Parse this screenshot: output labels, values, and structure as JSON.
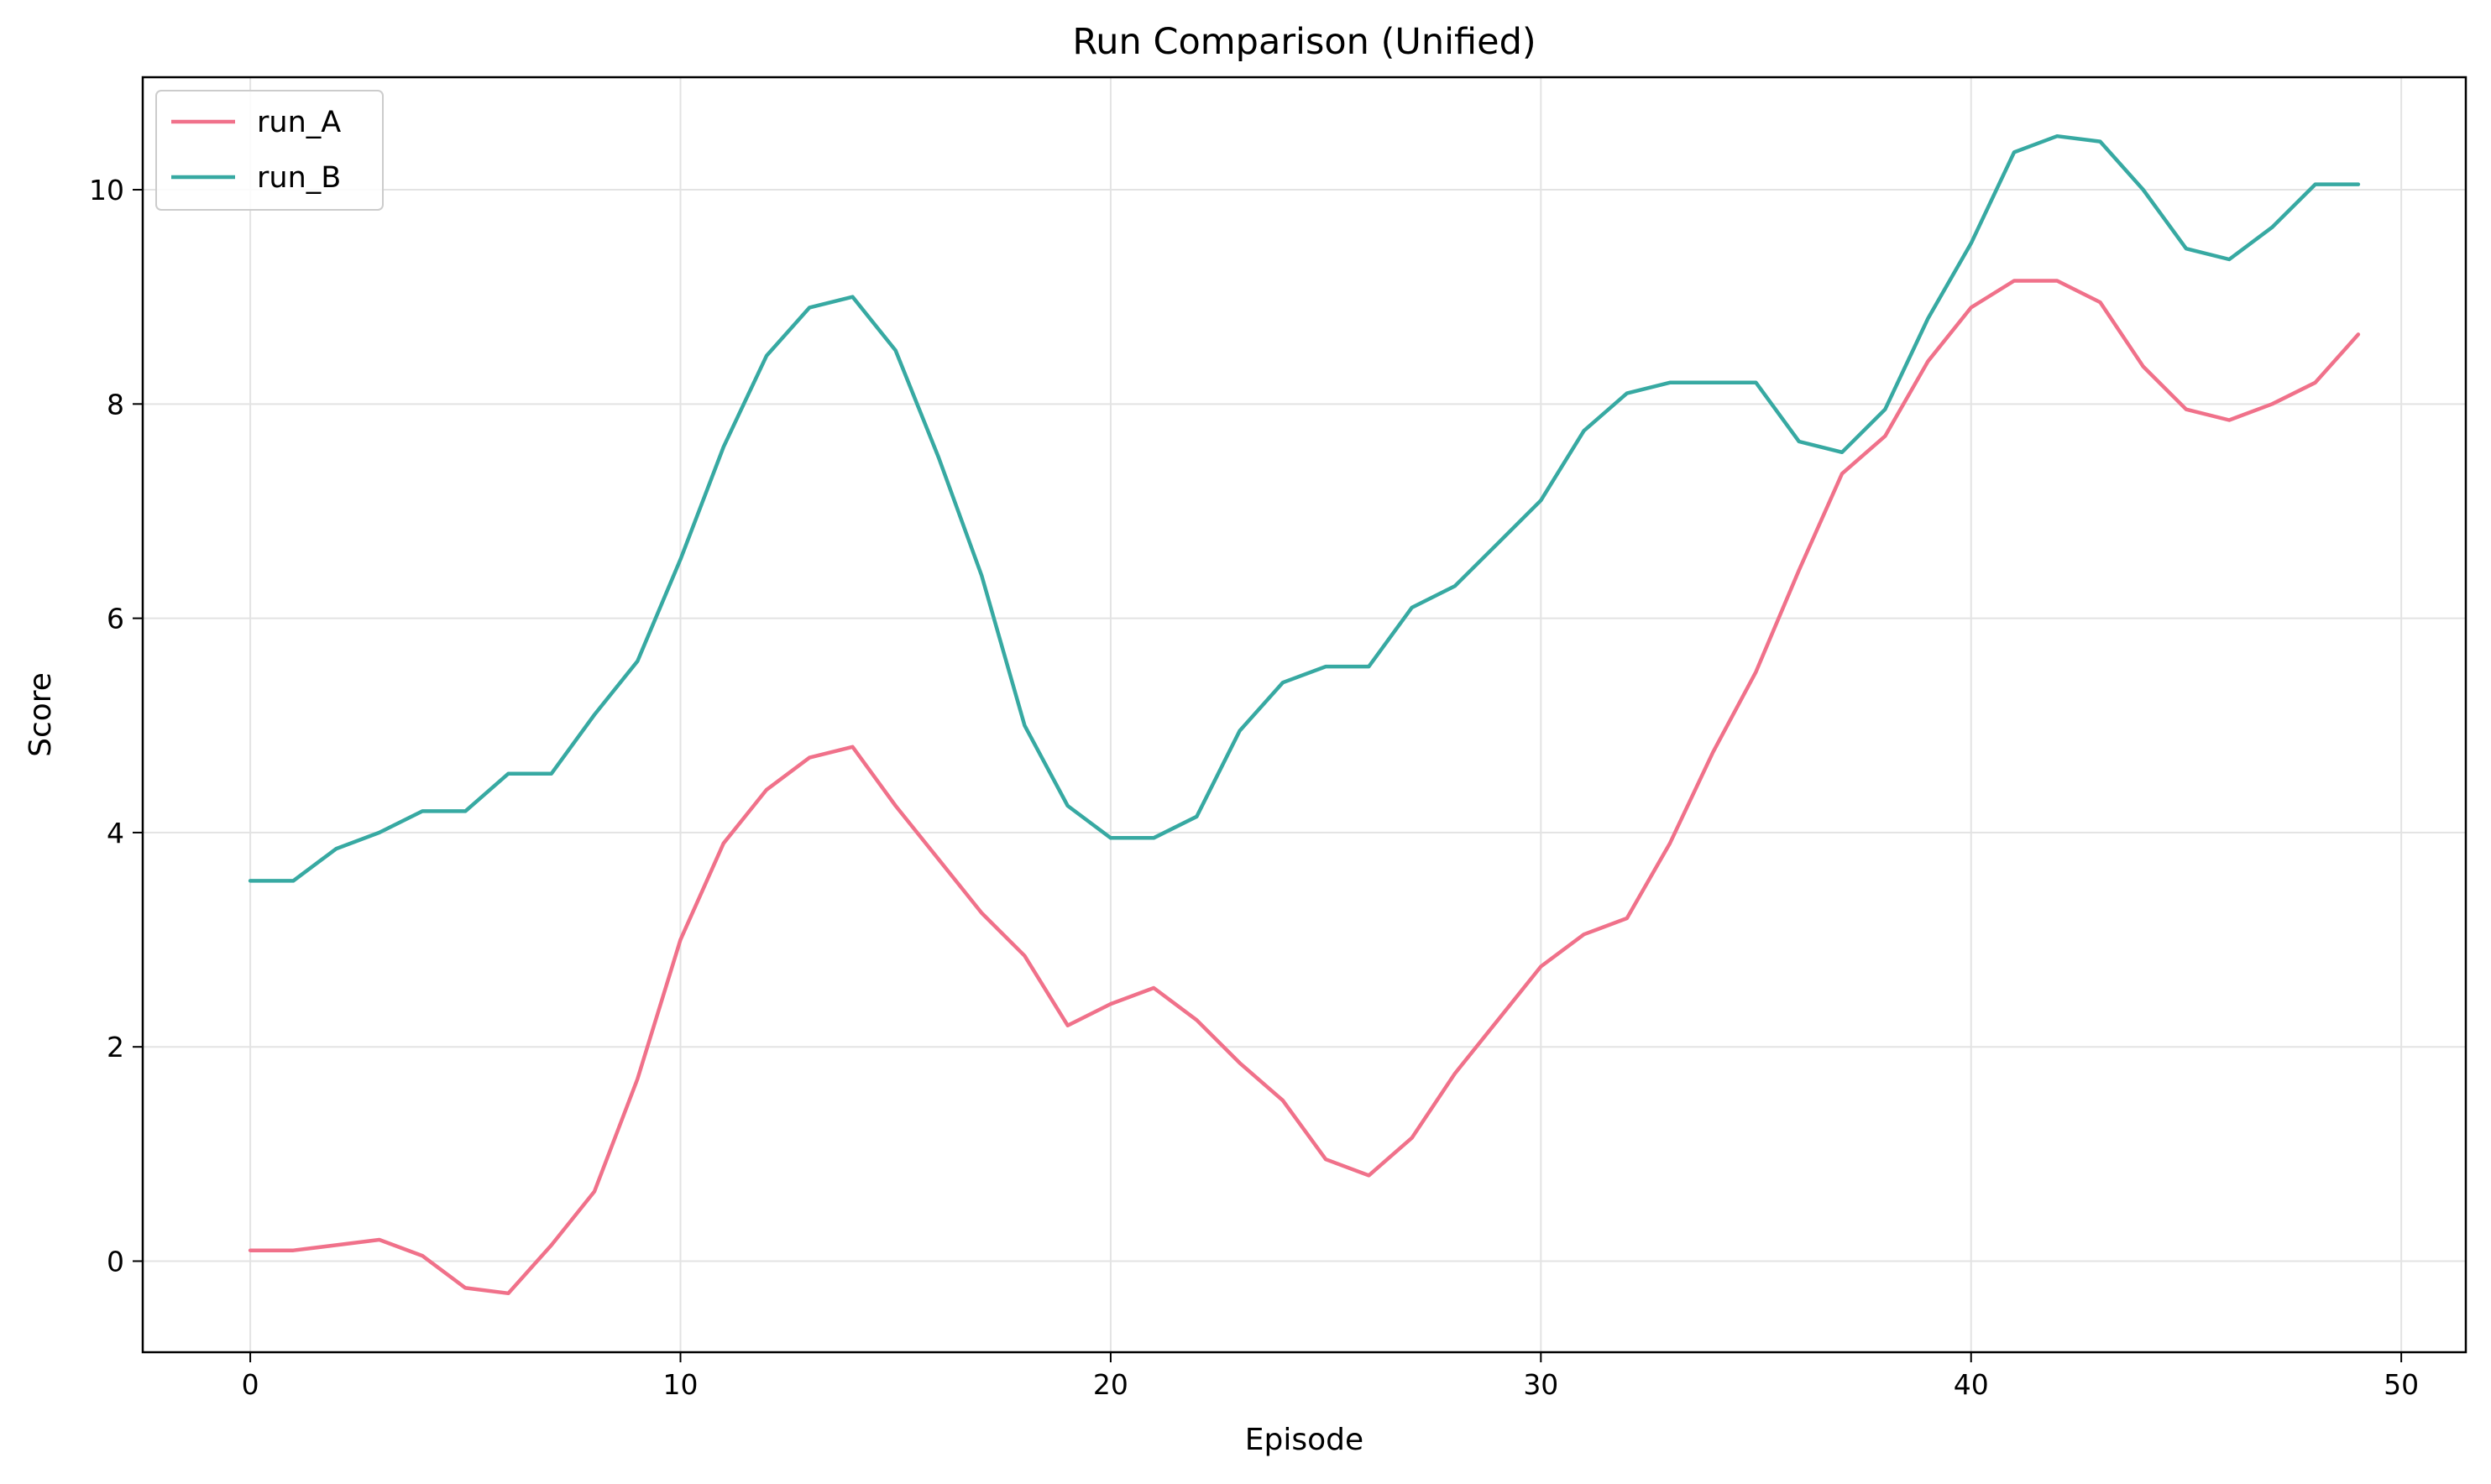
{
  "chart_data": {
    "type": "line",
    "title": "Run Comparison (Unified)",
    "xlabel": "Episode",
    "ylabel": "Score",
    "xlim": [
      -2.5,
      51.5
    ],
    "ylim": [
      -0.85,
      11.05
    ],
    "xticks": [
      0,
      10,
      20,
      30,
      40,
      50
    ],
    "yticks": [
      0,
      2,
      4,
      6,
      8,
      10
    ],
    "grid": true,
    "legend_position": "top-left",
    "x": [
      0,
      1,
      2,
      3,
      4,
      5,
      6,
      7,
      8,
      9,
      10,
      11,
      12,
      13,
      14,
      15,
      16,
      17,
      18,
      19,
      20,
      21,
      22,
      23,
      24,
      25,
      26,
      27,
      28,
      29,
      30,
      31,
      32,
      33,
      34,
      35,
      36,
      37,
      38,
      39,
      40,
      41,
      42,
      43,
      44,
      45,
      46,
      47,
      48,
      49
    ],
    "series": [
      {
        "name": "run_A",
        "color": "#f0718a",
        "values": [
          0.1,
          0.1,
          0.15,
          0.2,
          0.05,
          -0.25,
          -0.3,
          0.15,
          0.65,
          1.7,
          3.0,
          3.9,
          4.4,
          4.7,
          4.8,
          4.25,
          3.75,
          3.25,
          2.85,
          2.2,
          2.4,
          2.55,
          2.25,
          1.85,
          1.5,
          0.95,
          0.8,
          1.15,
          1.75,
          2.25,
          2.75,
          3.05,
          3.2,
          3.9,
          4.75,
          5.5,
          6.45,
          7.35,
          7.7,
          8.4,
          8.9,
          9.15,
          9.15,
          8.95,
          8.35,
          7.95,
          7.85,
          8.0,
          8.2,
          8.65
        ]
      },
      {
        "name": "run_B",
        "color": "#37a9a2",
        "values": [
          3.55,
          3.55,
          3.85,
          4.0,
          4.2,
          4.2,
          4.55,
          4.55,
          5.1,
          5.6,
          6.55,
          7.6,
          8.45,
          8.9,
          9.0,
          8.5,
          7.5,
          6.4,
          5.0,
          4.25,
          3.95,
          3.95,
          4.15,
          4.95,
          5.4,
          5.55,
          5.55,
          6.1,
          6.3,
          6.7,
          7.1,
          7.75,
          8.1,
          8.2,
          8.2,
          8.2,
          7.65,
          7.55,
          7.95,
          8.8,
          9.5,
          10.35,
          10.5,
          10.45,
          10.0,
          9.45,
          9.35,
          9.65,
          10.05,
          10.05
        ]
      }
    ]
  }
}
